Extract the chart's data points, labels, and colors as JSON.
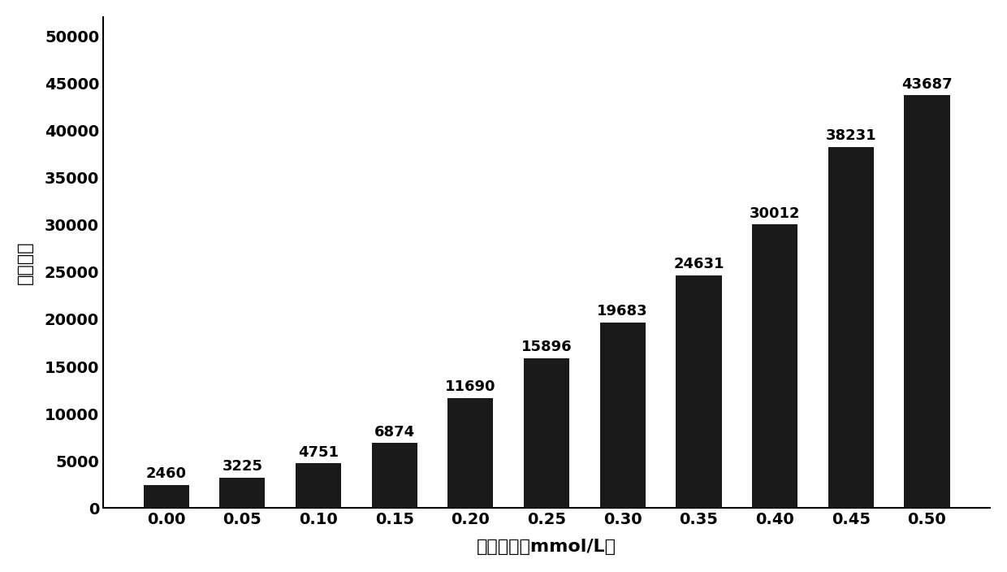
{
  "categories": [
    "0.00",
    "0.05",
    "0.10",
    "0.15",
    "0.20",
    "0.25",
    "0.30",
    "0.35",
    "0.40",
    "0.45",
    "0.50"
  ],
  "values": [
    2460,
    3225,
    4751,
    6874,
    11690,
    15896,
    19683,
    24631,
    30012,
    38231,
    43687
  ],
  "bar_color": "#1a1a1a",
  "xlabel": "伯胺浓度（mmol/L）",
  "ylabel": "荧光强度",
  "ylim": [
    0,
    52000
  ],
  "yticks": [
    0,
    5000,
    10000,
    15000,
    20000,
    25000,
    30000,
    35000,
    40000,
    45000,
    50000
  ],
  "background_color": "#ffffff",
  "label_fontsize": 16,
  "tick_fontsize": 14,
  "bar_width": 0.6,
  "annotation_fontsize": 13
}
